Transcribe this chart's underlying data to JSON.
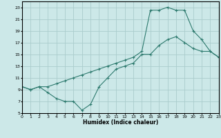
{
  "xlabel": "Humidex (Indice chaleur)",
  "bg_color": "#cce8e8",
  "grid_color": "#aacccc",
  "line_color": "#2d7a6e",
  "xlim": [
    0,
    23
  ],
  "ylim": [
    5,
    24
  ],
  "xticks": [
    0,
    1,
    2,
    3,
    4,
    5,
    6,
    7,
    8,
    9,
    10,
    11,
    12,
    13,
    14,
    15,
    16,
    17,
    18,
    19,
    20,
    21,
    22,
    23
  ],
  "yticks": [
    5,
    7,
    9,
    11,
    13,
    15,
    17,
    19,
    21,
    23
  ],
  "line1_x": [
    0,
    1,
    2,
    3,
    4,
    5,
    6,
    7,
    8,
    9,
    10,
    11,
    12,
    13,
    14,
    15,
    16,
    17,
    18,
    19,
    20,
    21,
    22,
    23
  ],
  "line1_y": [
    9.5,
    9.0,
    9.5,
    8.5,
    7.5,
    7.0,
    7.0,
    5.5,
    6.5,
    9.5,
    11.0,
    12.5,
    13.0,
    13.5,
    15.0,
    15.0,
    16.5,
    17.5,
    18.0,
    17.0,
    16.0,
    15.5,
    15.5,
    14.5
  ],
  "line2_x": [
    0,
    1,
    2,
    3,
    4,
    5,
    6,
    7,
    8,
    9,
    10,
    11,
    12,
    13,
    14,
    15,
    16,
    17,
    18,
    19,
    20,
    21,
    22,
    23
  ],
  "line2_y": [
    9.5,
    9.0,
    9.5,
    9.5,
    10.0,
    10.5,
    11.0,
    11.5,
    12.0,
    12.5,
    13.0,
    13.5,
    14.0,
    14.5,
    15.5,
    22.5,
    22.5,
    23.0,
    22.5,
    22.5,
    19.0,
    17.5,
    15.5,
    14.5
  ]
}
